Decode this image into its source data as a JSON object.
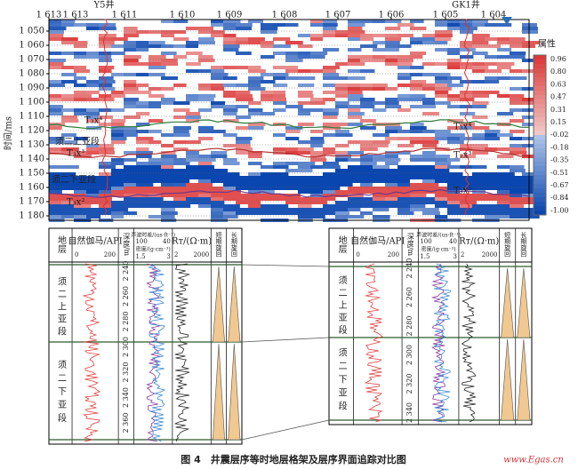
{
  "seismic": {
    "wells": [
      "Y5井",
      "GK1井"
    ],
    "traces": [
      "1 613",
      "1 613",
      "1 611",
      "1 610",
      "1 609",
      "1 608",
      "1 607",
      "1 606",
      "1 605",
      "1 604"
    ],
    "axis_title": "时间/ms",
    "time_ticks": [
      "1 050",
      "1 060",
      "1 070",
      "1 080",
      "1 090",
      "1 100",
      "1 110",
      "1 120",
      "1 130",
      "1 140",
      "1 150",
      "1 160",
      "1 170",
      "1 180"
    ],
    "colorbar": {
      "title": "属性",
      "ticks": [
        "0.96",
        "0.80",
        "0.63",
        "0.47",
        "0.31",
        "0.15",
        "-0.02",
        "-0.18",
        "-0.35",
        "-0.51",
        "-0.67",
        "-0.84",
        "-1.00"
      ]
    },
    "horizons": [
      "T₃x⁴",
      "T₃x³",
      "T₃x²",
      "T₃x⁴",
      "T₃x³",
      "T₃x²"
    ],
    "units": [
      "须二上亚段",
      "须二下亚段"
    ]
  },
  "logs": [
    {
      "headers": [
        "地层",
        "自然伽马/API",
        "深度/m",
        "声波时差/(us·ft⁻¹)",
        "密度/(g·cm⁻³)",
        "Rᴛ/(Ω·m)",
        "短期旋回",
        "长期旋回"
      ],
      "scales": [
        "0",
        "200",
        "100",
        "40",
        "1.5",
        "3",
        "2",
        "2000"
      ],
      "depths": [
        "2 240",
        "2 260",
        "2 280",
        "2 300",
        "2 320",
        "2 340",
        "2 360"
      ],
      "units": [
        "须二上亚段",
        "须二下亚段"
      ]
    },
    {
      "headers": [
        "地层",
        "自然伽马/API",
        "深度/m",
        "声波时差/(us·ft⁻¹)",
        "密度/(g·cm⁻³)",
        "Rᴛ/(Ω·m)",
        "短期旋回",
        "长期旋回"
      ],
      "scales": [
        "0",
        "200",
        "100",
        "40",
        "1.5",
        "3",
        "2",
        "2000"
      ],
      "depths": [
        "2 240",
        "2 260",
        "2 280",
        "2 300",
        "2 320",
        "2 340"
      ],
      "units": [
        "须二上亚段",
        "须二下亚段"
      ]
    }
  ],
  "caption": "图 4　井震层序等时地层格架及层序界面追踪对比图",
  "watermark": "www.Egas.cn"
}
